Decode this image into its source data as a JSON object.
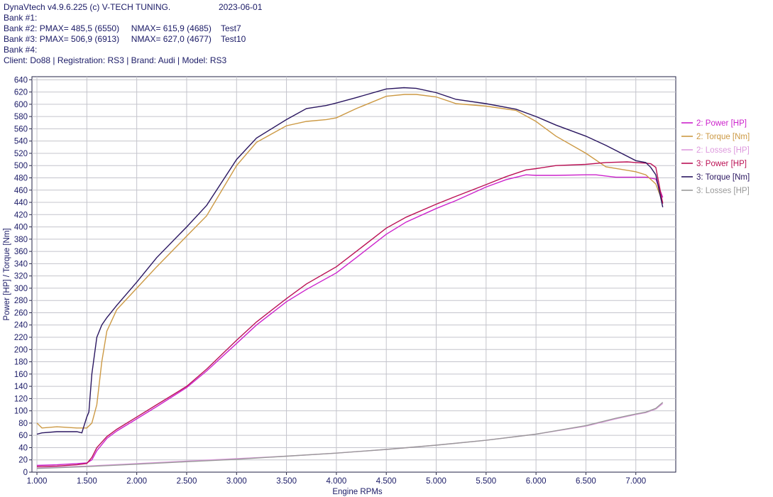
{
  "header": {
    "app": "DynaVtech v4.9.6.225 (c) V-TECH TUNING.",
    "date": "2023-06-01",
    "bank1": "Bank #1:",
    "bank2": "Bank #2: PMAX= 485,5 (6550)     NMAX= 615,9 (4685)    Test7",
    "bank3": "Bank #3: PMAX= 506,9 (6913)     NMAX= 627,0 (4677)    Test10",
    "bank4": "Bank #4:",
    "client": "Client: Do88 | Registration: RS3 | Brand: Audi | Model: RS3"
  },
  "chart_data": {
    "type": "line",
    "xlabel": "Engine RPMs",
    "ylabel": "Power [HP] / Torque [Nm]",
    "xlim": [
      950,
      7400
    ],
    "ylim": [
      0,
      645
    ],
    "grid": true,
    "legend_position": "right",
    "x_ticks": [
      "1.000",
      "1.500",
      "2.000",
      "2.500",
      "3.000",
      "3.500",
      "4.000",
      "4.500",
      "5.000",
      "5.500",
      "6.000",
      "6.500",
      "7.000"
    ],
    "x_tick_values": [
      1000,
      1500,
      2000,
      2500,
      3000,
      3500,
      4000,
      4500,
      5000,
      5500,
      6000,
      6500,
      7000
    ],
    "y_ticks": [
      0,
      20,
      40,
      60,
      80,
      100,
      120,
      140,
      160,
      180,
      200,
      220,
      240,
      260,
      280,
      300,
      320,
      340,
      360,
      380,
      400,
      420,
      440,
      460,
      480,
      500,
      520,
      540,
      560,
      580,
      600,
      620,
      640
    ],
    "series": [
      {
        "name": "2: Power [HP]",
        "color": "#cc22cc",
        "x": [
          1000,
          1200,
          1400,
          1500,
          1550,
          1600,
          1700,
          1800,
          2000,
          2200,
          2500,
          2700,
          3000,
          3200,
          3500,
          3700,
          4000,
          4200,
          4500,
          4700,
          5000,
          5200,
          5500,
          5700,
          5900,
          6000,
          6200,
          6500,
          6600,
          6700,
          6800,
          7000,
          7100,
          7200,
          7270
        ],
        "y": [
          11,
          12,
          14,
          15,
          20,
          35,
          55,
          67,
          87,
          107,
          138,
          165,
          210,
          240,
          278,
          298,
          325,
          350,
          388,
          408,
          430,
          443,
          465,
          477,
          485,
          484,
          484,
          485,
          485,
          483,
          481,
          481,
          481,
          478,
          448
        ]
      },
      {
        "name": "2: Torque [Nm]",
        "color": "#cc9944",
        "x": [
          1000,
          1050,
          1200,
          1400,
          1500,
          1550,
          1600,
          1650,
          1700,
          1800,
          2000,
          2200,
          2500,
          2700,
          3000,
          3200,
          3500,
          3700,
          3900,
          4000,
          4200,
          4500,
          4685,
          4800,
          5000,
          5200,
          5500,
          5800,
          6000,
          6200,
          6500,
          6700,
          7000,
          7100,
          7200,
          7270
        ],
        "y": [
          80,
          72,
          74,
          72,
          72,
          80,
          110,
          180,
          230,
          265,
          300,
          335,
          385,
          418,
          500,
          538,
          565,
          572,
          575,
          578,
          593,
          613,
          616,
          616,
          612,
          601,
          597,
          590,
          572,
          548,
          520,
          498,
          490,
          485,
          470,
          440
        ]
      },
      {
        "name": "2: Losses [HP]",
        "color": "#dd99dd",
        "x": [
          1000,
          1500,
          2000,
          2500,
          3000,
          3500,
          4000,
          4500,
          5000,
          5500,
          6000,
          6500,
          6800,
          7000,
          7100,
          7200,
          7270
        ],
        "y": [
          7,
          10,
          14,
          18,
          22,
          26,
          31,
          37,
          44,
          52,
          62,
          75,
          87,
          94,
          97,
          103,
          112
        ]
      },
      {
        "name": "3: Power [HP]",
        "color": "#bb1155",
        "x": [
          1000,
          1200,
          1400,
          1500,
          1550,
          1600,
          1700,
          1800,
          2000,
          2200,
          2500,
          2700,
          3000,
          3200,
          3500,
          3700,
          4000,
          4200,
          4500,
          4700,
          5000,
          5200,
          5500,
          5700,
          5900,
          6000,
          6200,
          6500,
          6700,
          6913,
          7000,
          7100,
          7150,
          7200,
          7270
        ],
        "y": [
          9,
          10,
          12,
          14,
          24,
          40,
          58,
          70,
          90,
          110,
          140,
          168,
          215,
          245,
          283,
          307,
          335,
          360,
          398,
          416,
          437,
          450,
          469,
          482,
          493,
          495,
          500,
          502,
          505,
          506,
          505,
          504,
          503,
          497,
          438
        ]
      },
      {
        "name": "3: Torque [Nm]",
        "color": "#2a1660",
        "x": [
          1000,
          1050,
          1200,
          1400,
          1450,
          1500,
          1520,
          1550,
          1600,
          1650,
          1700,
          1800,
          2000,
          2200,
          2500,
          2700,
          3000,
          3200,
          3500,
          3700,
          3900,
          4000,
          4200,
          4500,
          4677,
          4800,
          5000,
          5200,
          5500,
          5800,
          6000,
          6200,
          6500,
          6700,
          7000,
          7100,
          7150,
          7200,
          7270
        ],
        "y": [
          62,
          64,
          66,
          66,
          64,
          90,
          98,
          160,
          220,
          240,
          252,
          272,
          310,
          350,
          400,
          435,
          510,
          545,
          575,
          593,
          598,
          602,
          611,
          625,
          627,
          626,
          619,
          608,
          601,
          592,
          580,
          566,
          548,
          533,
          508,
          505,
          497,
          485,
          432
        ]
      },
      {
        "name": "3: Losses [HP]",
        "color": "#999999",
        "x": [
          1000,
          1500,
          2000,
          2500,
          3000,
          3500,
          4000,
          4500,
          5000,
          5500,
          6000,
          6500,
          6800,
          7000,
          7100,
          7200,
          7270
        ],
        "y": [
          6,
          9,
          13,
          17,
          21,
          26,
          31,
          37,
          44,
          52,
          62,
          76,
          88,
          95,
          98,
          104,
          114
        ]
      }
    ]
  }
}
